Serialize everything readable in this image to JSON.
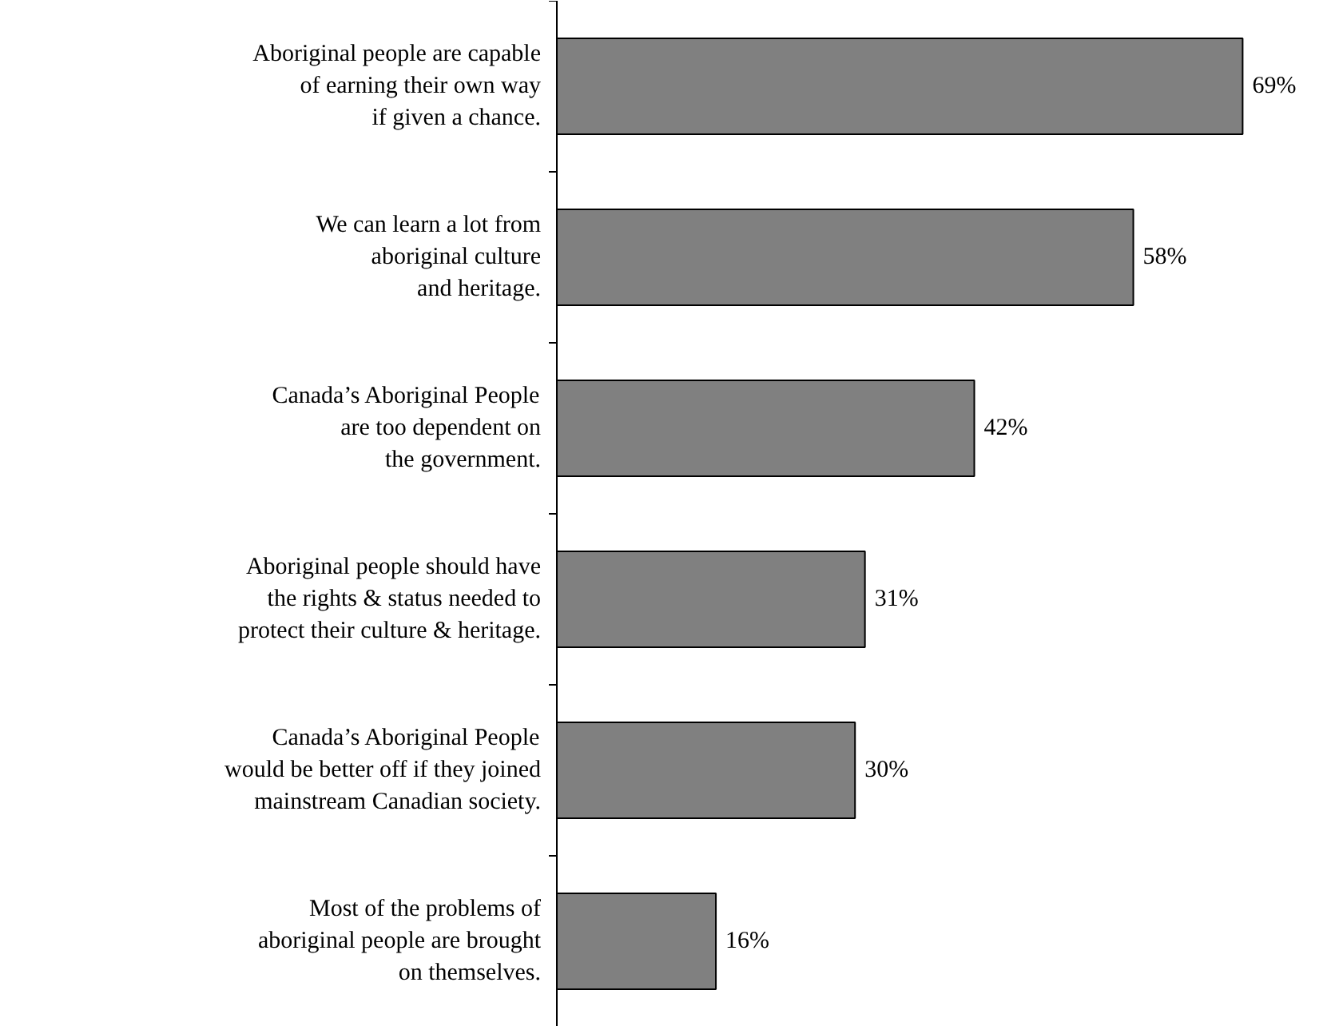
{
  "chart_data": {
    "type": "bar",
    "orientation": "horizontal",
    "categories": [
      "Aboriginal people are capable\nof earning their own way\nif given a chance.",
      "We can learn a lot from\naboriginal culture\nand heritage.",
      "Canada’s Aboriginal People\nare too dependent on\nthe government.",
      "Aboriginal people should have\nthe rights & status needed to\nprotect their culture & heritage.",
      "Canada’s Aboriginal People\nwould be better off if they joined\nmainstream Canadian society.",
      "Most of the problems of\naboriginal people are brought\non themselves."
    ],
    "values": [
      69,
      58,
      42,
      31,
      30,
      16
    ],
    "value_labels": [
      "69%",
      "58%",
      "42%",
      "31%",
      "30%",
      "16%"
    ],
    "color": "#808080"
  }
}
